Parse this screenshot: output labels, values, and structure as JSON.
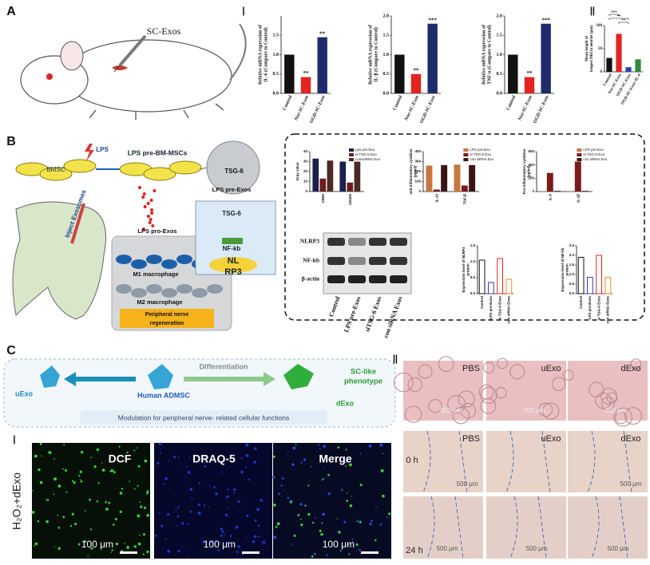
{
  "panel_labels": [
    "A",
    "B",
    "C"
  ],
  "section_numerals": [
    "Ⅰ",
    "Ⅱ",
    "Ⅱ",
    "Ⅰ"
  ],
  "panel_a": {
    "injection_label": "SC-Exos"
  },
  "panel_b": {
    "bmsc": "BMSC",
    "lps": "LPS",
    "lps_pre_bm_mscs": "LPS pre-BM-MSCs",
    "tsg6_vesicle": "TSG-6",
    "lps_pre_exos": "LPS pre-Exos",
    "inject": "Inject Exosomes",
    "lps_pro_exos": "LPS pro-Exos",
    "m1": "M1 macrophage",
    "m2": "M2 macrophage",
    "outcome": [
      "Peripheral nerve",
      "regeneration"
    ],
    "pathway": [
      "TSG-6",
      "NF-kb",
      "NL",
      "RP3"
    ],
    "blot_rows": [
      "NLRP3",
      "NF-kb",
      "β-actin"
    ],
    "blot_lanes": [
      "Control",
      "LPS pre-Exos",
      "siTSG-6 Exos",
      "con siRNA Exos"
    ]
  },
  "panel_c": {
    "uexo": "uExo",
    "source": "Human ADMSC",
    "differentiation": "Differentiation",
    "phenotype": [
      "SC-like",
      "phenotype"
    ],
    "dexo": "dExo",
    "function": "Modulation for peripheral nerve- related cellular functions",
    "stains": [
      "DCF",
      "DRAQ-5",
      "Merge"
    ],
    "fluor_scale": [
      "100 μm",
      "100 μm",
      "100 μm"
    ],
    "treatment": "H₂O₂+dExo",
    "tube_groups": [
      "PBS",
      "uExo",
      "dExo"
    ],
    "tube_scale": [
      "500 μm",
      "500 μm",
      "500 μm"
    ],
    "wound_groups": [
      "PBS",
      "uExo",
      "dExo"
    ],
    "wound_times": [
      "0 h",
      "24 h"
    ],
    "wound_scale": [
      "500 μm",
      "500 μm",
      "500 μm",
      "500 μm",
      "500 μm"
    ]
  },
  "chart_data": [
    {
      "type": "bar",
      "y_label": [
        "Relative mRNA expression of",
        "IL-6 (Compare to Control)"
      ],
      "categories": [
        "Control",
        "Nor-SC-Exos",
        "OGD-SC-Exos"
      ],
      "values": [
        1.0,
        0.42,
        1.45
      ],
      "colors": [
        "#111111",
        "#e32420",
        "#1e2c6b"
      ],
      "significance": [
        null,
        "**",
        "**"
      ],
      "ylim": [
        0,
        2
      ],
      "yticks": [
        {
          "value": 0,
          "label": "0.0"
        },
        {
          "value": 0.5,
          "label": "0.5"
        },
        {
          "value": 1,
          "label": "1.0"
        },
        {
          "value": 1.5,
          "label": "1.5"
        }
      ]
    },
    {
      "type": "bar",
      "y_label": [
        "Relative mRNA expression of",
        "IL-β (Compare to Control)"
      ],
      "categories": [
        "Control",
        "Nor-SC-Exos",
        "OGD-SC-Exos"
      ],
      "values": [
        1.0,
        0.5,
        1.8
      ],
      "colors": [
        "#111111",
        "#e32420",
        "#1e2c6b"
      ],
      "significance": [
        null,
        "**",
        "***"
      ],
      "ylim": [
        0,
        2
      ],
      "yticks": [
        {
          "value": 0,
          "label": "0.0"
        },
        {
          "value": 0.5,
          "label": "0.5"
        },
        {
          "value": 1,
          "label": "1.0"
        },
        {
          "value": 1.5,
          "label": "1.5"
        },
        {
          "value": 2,
          "label": "2.0"
        }
      ]
    },
    {
      "type": "bar",
      "y_label": [
        "Relative mRNA expression of",
        "TNF-α (Compare to Control)"
      ],
      "categories": [
        "Control",
        "Nor-SC-Exos",
        "OGD-SC-Exos"
      ],
      "values": [
        1.0,
        0.42,
        1.8
      ],
      "colors": [
        "#111111",
        "#e32420",
        "#1e2c6b"
      ],
      "significance": [
        null,
        "**",
        "***"
      ],
      "ylim": [
        0,
        2
      ],
      "yticks": [
        {
          "value": 0,
          "label": "0.0"
        },
        {
          "value": 0.5,
          "label": "0.5"
        },
        {
          "value": 1,
          "label": "1.0"
        },
        {
          "value": 1.5,
          "label": "1.5"
        },
        {
          "value": 2,
          "label": "2.0"
        }
      ]
    },
    {
      "type": "bar",
      "y_label": [
        "Mean length of",
        "longest DRGn neurite (μm)"
      ],
      "categories": [
        "Control",
        "Nor-SC-Exos",
        "OGD-SC-Exos",
        "OGD-SC-Exos+IL-4"
      ],
      "values": [
        30,
        82,
        10,
        27
      ],
      "colors": [
        "#111111",
        "#e32420",
        "#2b3fb0",
        "#2e8b3a"
      ],
      "comparisons": [
        "***",
        "**",
        "**"
      ],
      "ylim": [
        0,
        100
      ],
      "yticks": [
        0,
        50,
        100
      ]
    },
    {
      "type": "bar",
      "y_label": [
        "Gray value"
      ],
      "categories": [
        "CD86",
        "CD206"
      ],
      "series": [
        {
          "name": "Lps pre-Exo",
          "color": "#1b1f4b",
          "values": [
            33,
            30
          ]
        },
        {
          "name": "si TSG-6 Exo",
          "color": "#6b1d1d",
          "values": [
            13,
            9
          ]
        },
        {
          "name": "conssiRNA Exo",
          "color": "#4a2a22",
          "values": [
            31,
            30
          ]
        }
      ],
      "ylim": [
        0,
        40
      ],
      "yticks": [
        0,
        10,
        20,
        30,
        40
      ]
    },
    {
      "type": "bar",
      "y_label": [
        "anti-inflammatory cytokine",
        "(pg/ml)"
      ],
      "categories": [
        "IL-10",
        "TGF-β"
      ],
      "series": [
        {
          "name": "LPS pre-Exo",
          "color": "#c8763e",
          "values": [
            260,
            270
          ]
        },
        {
          "name": "si TSG-6 Exo",
          "color": "#7a1b1b",
          "values": [
            20,
            60
          ]
        },
        {
          "name": "con siRNA Exo",
          "color": "#3a1515",
          "values": [
            265,
            265
          ]
        }
      ],
      "ylim": [
        0,
        400
      ],
      "yticks": [
        0,
        100,
        200,
        300,
        400
      ]
    },
    {
      "type": "bar",
      "y_label": [
        "Pro-inflammatory cytokine",
        "(pg/ml)"
      ],
      "categories": [
        "IL-6",
        "IL-1β"
      ],
      "series": [
        {
          "name": "LPS pre-Exo",
          "color": "#c8763e",
          "values": [
            5,
            5
          ]
        },
        {
          "name": "si TSG-6 Exo",
          "color": "#7a1b1b",
          "values": [
            280,
            450
          ]
        },
        {
          "name": "con siRNA Exo",
          "color": "#3a1515",
          "values": [
            10,
            10
          ]
        }
      ],
      "ylim": [
        0,
        600
      ],
      "yticks": [
        0,
        200,
        400,
        600
      ]
    },
    {
      "type": "bar",
      "bar_style": "outline",
      "y_label": [
        "Expression level of NLRP3",
        "protein"
      ],
      "categories": [
        "Control",
        "LPS pre-Exos",
        "si TSG-6 Exos",
        "con siRNA Exos"
      ],
      "values": [
        1.05,
        0.35,
        1.1,
        0.45
      ],
      "colors": [
        "#111111",
        "#2b3fb0",
        "#e32420",
        "#f08a1c"
      ],
      "ylim": [
        0,
        1.5
      ],
      "yticks": [
        {
          "value": 0,
          "label": "0.0"
        },
        {
          "value": 0.5,
          "label": "0.5"
        },
        {
          "value": 1,
          "label": "1.0"
        },
        {
          "value": 1.5,
          "label": "1.5"
        }
      ]
    },
    {
      "type": "bar",
      "bar_style": "outline",
      "y_label": [
        "Expression level of NF-kb",
        "protein"
      ],
      "categories": [
        "Control",
        "LPS pre-Exos",
        "si TSG-6 Exos",
        "con siRNA Exos"
      ],
      "values": [
        1.9,
        0.85,
        2.0,
        0.85
      ],
      "colors": [
        "#111111",
        "#2b3fb0",
        "#e32420",
        "#f08a1c"
      ],
      "ylim": [
        0,
        2.5
      ],
      "yticks": [
        {
          "value": 0,
          "label": "0.0"
        },
        {
          "value": 0.5,
          "label": "0.5"
        },
        {
          "value": 1,
          "label": "1.0"
        },
        {
          "value": 1.5,
          "label": "1.5"
        },
        {
          "value": 2,
          "label": "2.0"
        },
        {
          "value": 2.5,
          "label": "2.5"
        }
      ]
    }
  ]
}
